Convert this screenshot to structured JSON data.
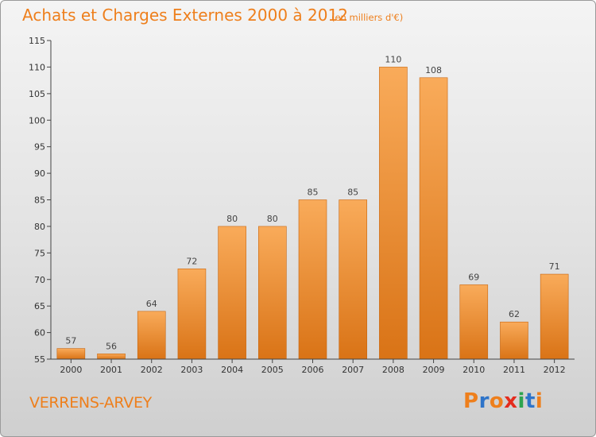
{
  "header": {
    "title": "Achats et Charges Externes 2000 à 2012",
    "subtitle": "(en milliers d'€)"
  },
  "footer": {
    "place": "VERRENS-ARVEY",
    "logo_letters": [
      "P",
      "r",
      "o",
      "x",
      "i",
      "t",
      "i"
    ],
    "logo_colors": [
      "#ee7f1c",
      "#2e74c9",
      "#ee7f1c",
      "#e42c1d",
      "#2ea44f",
      "#2e74c9",
      "#ee7f1c"
    ]
  },
  "colors": {
    "bar_light": "#f9ab5a",
    "bar_dark": "#d97316",
    "axis": "#444444",
    "grid": "#d6d6d6",
    "text_accent": "#ee7f1c"
  },
  "chart_data": {
    "type": "bar",
    "title": "Achats et Charges Externes 2000 à 2012",
    "subtitle": "(en milliers d'€)",
    "xlabel": "",
    "ylabel": "",
    "categories": [
      "2000",
      "2001",
      "2002",
      "2003",
      "2004",
      "2005",
      "2006",
      "2007",
      "2008",
      "2009",
      "2010",
      "2011",
      "2012"
    ],
    "values": [
      57,
      56,
      64,
      72,
      80,
      80,
      85,
      85,
      110,
      108,
      69,
      62,
      71
    ],
    "value_labels": [
      "57",
      "56",
      "64",
      "72",
      "80",
      "80",
      "85",
      "85",
      "110",
      "108",
      "69",
      "62",
      "71"
    ],
    "ylim": [
      55,
      115
    ],
    "yticks": [
      55,
      60,
      65,
      70,
      75,
      80,
      85,
      90,
      95,
      100,
      105,
      110,
      115
    ],
    "grid": false,
    "legend": "none"
  }
}
